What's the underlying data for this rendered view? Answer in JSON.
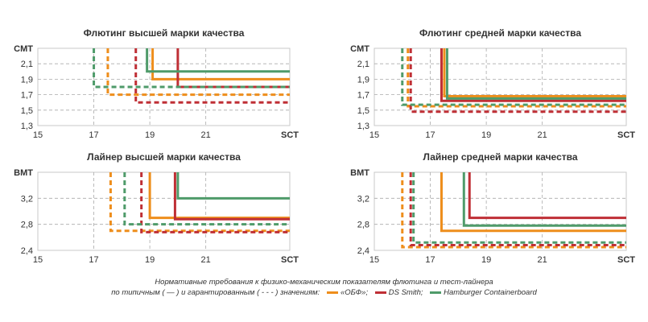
{
  "chart_data": [
    {
      "type": "line",
      "title": "Флютинг высшей марки качества",
      "ylabel": "CMT",
      "xlabel": "SCT",
      "xticks": [
        "15",
        "17",
        "19",
        "21"
      ],
      "yticks": [
        "1,3",
        "1,5",
        "1,7",
        "1,9",
        "2,1"
      ],
      "xlim": [
        15,
        24
      ],
      "ylim": [
        1.3,
        2.3
      ],
      "grid": true,
      "series": [
        {
          "name": "«ОБФ»",
          "color": "#ee8e1c",
          "style": "solid",
          "x": 19.1,
          "y": 1.9
        },
        {
          "name": "DS Smith",
          "color": "#bf2f35",
          "style": "solid",
          "x": 20.0,
          "y": 1.8
        },
        {
          "name": "Hamburger Containerboard",
          "color": "#4f9b6a",
          "style": "solid",
          "x": 18.9,
          "y": 2.0
        },
        {
          "name": "«ОБФ»",
          "color": "#ee8e1c",
          "style": "dashed",
          "x": 17.5,
          "y": 1.7
        },
        {
          "name": "DS Smith",
          "color": "#bf2f35",
          "style": "dashed",
          "x": 18.5,
          "y": 1.6
        },
        {
          "name": "Hamburger Containerboard",
          "color": "#4f9b6a",
          "style": "dashed",
          "x": 17.0,
          "y": 1.8
        }
      ]
    },
    {
      "type": "line",
      "title": "Флютинг средней марки качества",
      "ylabel": "CMT",
      "xlabel": "SCT",
      "xticks": [
        "15",
        "17",
        "19",
        "21"
      ],
      "yticks": [
        "1,3",
        "1,5",
        "1,7",
        "1,9",
        "2,1"
      ],
      "xlim": [
        15,
        24
      ],
      "ylim": [
        1.3,
        2.3
      ],
      "grid": true,
      "series": [
        {
          "name": "«ОБФ»",
          "color": "#ee8e1c",
          "style": "solid",
          "x": 17.5,
          "y": 1.68
        },
        {
          "name": "DS Smith",
          "color": "#bf2f35",
          "style": "solid",
          "x": 17.4,
          "y": 1.62
        },
        {
          "name": "Hamburger Containerboard",
          "color": "#4f9b6a",
          "style": "solid",
          "x": 17.6,
          "y": 1.65
        },
        {
          "name": "«ОБФ»",
          "color": "#ee8e1c",
          "style": "dashed",
          "x": 16.2,
          "y": 1.55
        },
        {
          "name": "DS Smith",
          "color": "#bf2f35",
          "style": "dashed",
          "x": 16.3,
          "y": 1.48
        },
        {
          "name": "Hamburger Containerboard",
          "color": "#4f9b6a",
          "style": "dashed",
          "x": 16.0,
          "y": 1.57
        }
      ]
    },
    {
      "type": "line",
      "title": "Лайнер высшей марки качества",
      "ylabel": "BMT",
      "xlabel": "SCT",
      "xticks": [
        "15",
        "17",
        "19",
        "21"
      ],
      "yticks": [
        "2,4",
        "2,8",
        "3,2"
      ],
      "xlim": [
        15,
        24
      ],
      "ylim": [
        2.4,
        3.6
      ],
      "grid": true,
      "series": [
        {
          "name": "«ОБФ»",
          "color": "#ee8e1c",
          "style": "solid",
          "x": 19.0,
          "y": 2.9
        },
        {
          "name": "DS Smith",
          "color": "#bf2f35",
          "style": "solid",
          "x": 19.9,
          "y": 2.88
        },
        {
          "name": "Hamburger Containerboard",
          "color": "#4f9b6a",
          "style": "solid",
          "x": 20.0,
          "y": 3.2
        },
        {
          "name": "«ОБФ»",
          "color": "#ee8e1c",
          "style": "dashed",
          "x": 17.6,
          "y": 2.7
        },
        {
          "name": "DS Smith",
          "color": "#bf2f35",
          "style": "dashed",
          "x": 18.7,
          "y": 2.68
        },
        {
          "name": "Hamburger Containerboard",
          "color": "#4f9b6a",
          "style": "dashed",
          "x": 18.1,
          "y": 2.8
        }
      ]
    },
    {
      "type": "line",
      "title": "Лайнер средней марки качества",
      "ylabel": "BMT",
      "xlabel": "SCT",
      "xticks": [
        "15",
        "17",
        "19",
        "21"
      ],
      "yticks": [
        "2,4",
        "2,8",
        "3,2"
      ],
      "xlim": [
        15,
        24
      ],
      "ylim": [
        2.4,
        3.6
      ],
      "grid": true,
      "series": [
        {
          "name": "«ОБФ»",
          "color": "#ee8e1c",
          "style": "solid",
          "x": 17.4,
          "y": 2.7
        },
        {
          "name": "DS Smith",
          "color": "#bf2f35",
          "style": "solid",
          "x": 18.4,
          "y": 2.9
        },
        {
          "name": "Hamburger Containerboard",
          "color": "#4f9b6a",
          "style": "solid",
          "x": 18.2,
          "y": 2.78
        },
        {
          "name": "«ОБФ»",
          "color": "#ee8e1c",
          "style": "dashed",
          "x": 16.0,
          "y": 2.45
        },
        {
          "name": "DS Smith",
          "color": "#bf2f35",
          "style": "dashed",
          "x": 16.3,
          "y": 2.48
        },
        {
          "name": "Hamburger Containerboard",
          "color": "#4f9b6a",
          "style": "dashed",
          "x": 16.4,
          "y": 2.52
        }
      ]
    }
  ],
  "caption": {
    "line1": "Нормативные требования к физико-механическим показателям флютинга и тест-лайнера",
    "line2_prefix": "по типичным ( — ) и гарантированным ( - - - ) значениям:",
    "legend": [
      {
        "label": "«ОБФ»;",
        "color": "#ee8e1c"
      },
      {
        "label": "DS Smith;",
        "color": "#bf2f35"
      },
      {
        "label": "Hamburger Containerboard",
        "color": "#4f9b6a"
      }
    ]
  }
}
